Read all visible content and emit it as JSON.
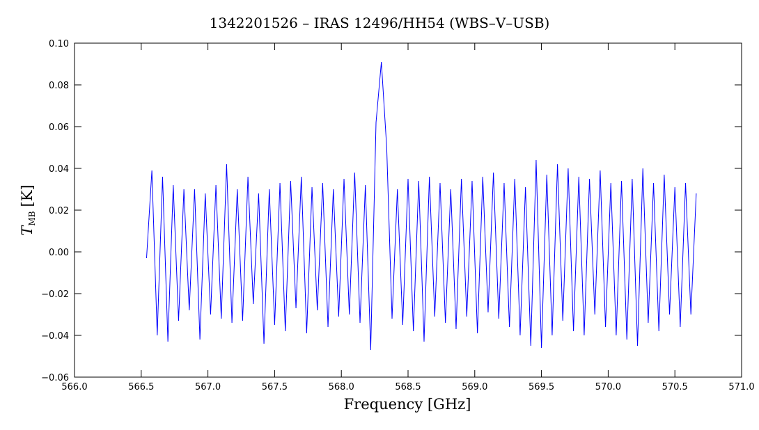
{
  "chart_data": {
    "type": "line",
    "title": "1342201526 – IRAS 12496/HH54 (WBS–V–USB)",
    "xlabel": "Frequency [GHz]",
    "ylabel": {
      "symbol": "T",
      "subscript": "MB",
      "unit": "[K]"
    },
    "xlim": [
      566.0,
      571.0
    ],
    "ylim": [
      -0.06,
      0.1
    ],
    "xticks": [
      {
        "value": 566.0,
        "label": "566.0"
      },
      {
        "value": 566.5,
        "label": "566.5"
      },
      {
        "value": 567.0,
        "label": "567.0"
      },
      {
        "value": 567.5,
        "label": "567.5"
      },
      {
        "value": 568.0,
        "label": "568.0"
      },
      {
        "value": 568.5,
        "label": "568.5"
      },
      {
        "value": 569.0,
        "label": "569.0"
      },
      {
        "value": 569.5,
        "label": "569.5"
      },
      {
        "value": 570.0,
        "label": "570.0"
      },
      {
        "value": 570.5,
        "label": "570.5"
      },
      {
        "value": 571.0,
        "label": "571.0"
      }
    ],
    "yticks": [
      {
        "value": -0.06,
        "label": "−0.06"
      },
      {
        "value": -0.04,
        "label": "−0.04"
      },
      {
        "value": -0.02,
        "label": "−0.02"
      },
      {
        "value": 0,
        "label": "0.00"
      },
      {
        "value": 0.02,
        "label": "0.02"
      },
      {
        "value": 0.04,
        "label": "0.04"
      },
      0.06,
      0.08,
      {
        "value": 0.1,
        "label": "0.10"
      }
    ],
    "series": [
      {
        "color": "#0000ff",
        "x": [
          566.54,
          566.58,
          566.62,
          566.66,
          566.7,
          566.74,
          566.78,
          566.82,
          566.86,
          566.9,
          566.94,
          566.98,
          567.02,
          567.06,
          567.1,
          567.14,
          567.18,
          567.22,
          567.26,
          567.3,
          567.34,
          567.38,
          567.42,
          567.46,
          567.5,
          567.54,
          567.58,
          567.62,
          567.66,
          567.7,
          567.74,
          567.78,
          567.82,
          567.86,
          567.9,
          567.94,
          567.98,
          568.02,
          568.06,
          568.1,
          568.14,
          568.18,
          568.22,
          568.26,
          568.3,
          568.34,
          568.38,
          568.42,
          568.46,
          568.5,
          568.54,
          568.58,
          568.62,
          568.66,
          568.7,
          568.74,
          568.78,
          568.82,
          568.86,
          568.9,
          568.94,
          568.98,
          569.02,
          569.06,
          569.1,
          569.14,
          569.18,
          569.22,
          569.26,
          569.3,
          569.34,
          569.38,
          569.42,
          569.46,
          569.5,
          569.54,
          569.58,
          569.62,
          569.66,
          569.7,
          569.74,
          569.78,
          569.82,
          569.86,
          569.9,
          569.94,
          569.98,
          570.02,
          570.06,
          570.1,
          570.14,
          570.18,
          570.22,
          570.26,
          570.3,
          570.34,
          570.38,
          570.42,
          570.46,
          570.5,
          570.54,
          570.58,
          570.62,
          570.66
        ],
        "values": [
          -0.003,
          0.039,
          -0.04,
          0.036,
          -0.043,
          0.032,
          -0.033,
          0.03,
          -0.028,
          0.03,
          -0.042,
          0.028,
          -0.03,
          0.032,
          -0.032,
          0.042,
          -0.034,
          0.03,
          -0.033,
          0.036,
          -0.025,
          0.028,
          -0.044,
          0.03,
          -0.035,
          0.033,
          -0.038,
          0.034,
          -0.027,
          0.036,
          -0.039,
          0.031,
          -0.028,
          0.033,
          -0.036,
          0.03,
          -0.031,
          0.035,
          -0.03,
          0.038,
          -0.034,
          0.032,
          -0.047,
          0.062,
          0.091,
          0.05,
          -0.032,
          0.03,
          -0.035,
          0.035,
          -0.038,
          0.034,
          -0.043,
          0.036,
          -0.031,
          0.033,
          -0.034,
          0.03,
          -0.037,
          0.035,
          -0.031,
          0.034,
          -0.039,
          0.036,
          -0.029,
          0.038,
          -0.032,
          0.033,
          -0.036,
          0.035,
          -0.04,
          0.031,
          -0.045,
          0.044,
          -0.046,
          0.037,
          -0.04,
          0.042,
          -0.033,
          0.04,
          -0.038,
          0.036,
          -0.04,
          0.035,
          -0.03,
          0.039,
          -0.036,
          0.033,
          -0.04,
          0.034,
          -0.042,
          0.035,
          -0.045,
          0.04,
          -0.034,
          0.033,
          -0.038,
          0.037,
          -0.03,
          0.031,
          -0.036,
          0.033,
          -0.03,
          0.028
        ]
      }
    ]
  }
}
